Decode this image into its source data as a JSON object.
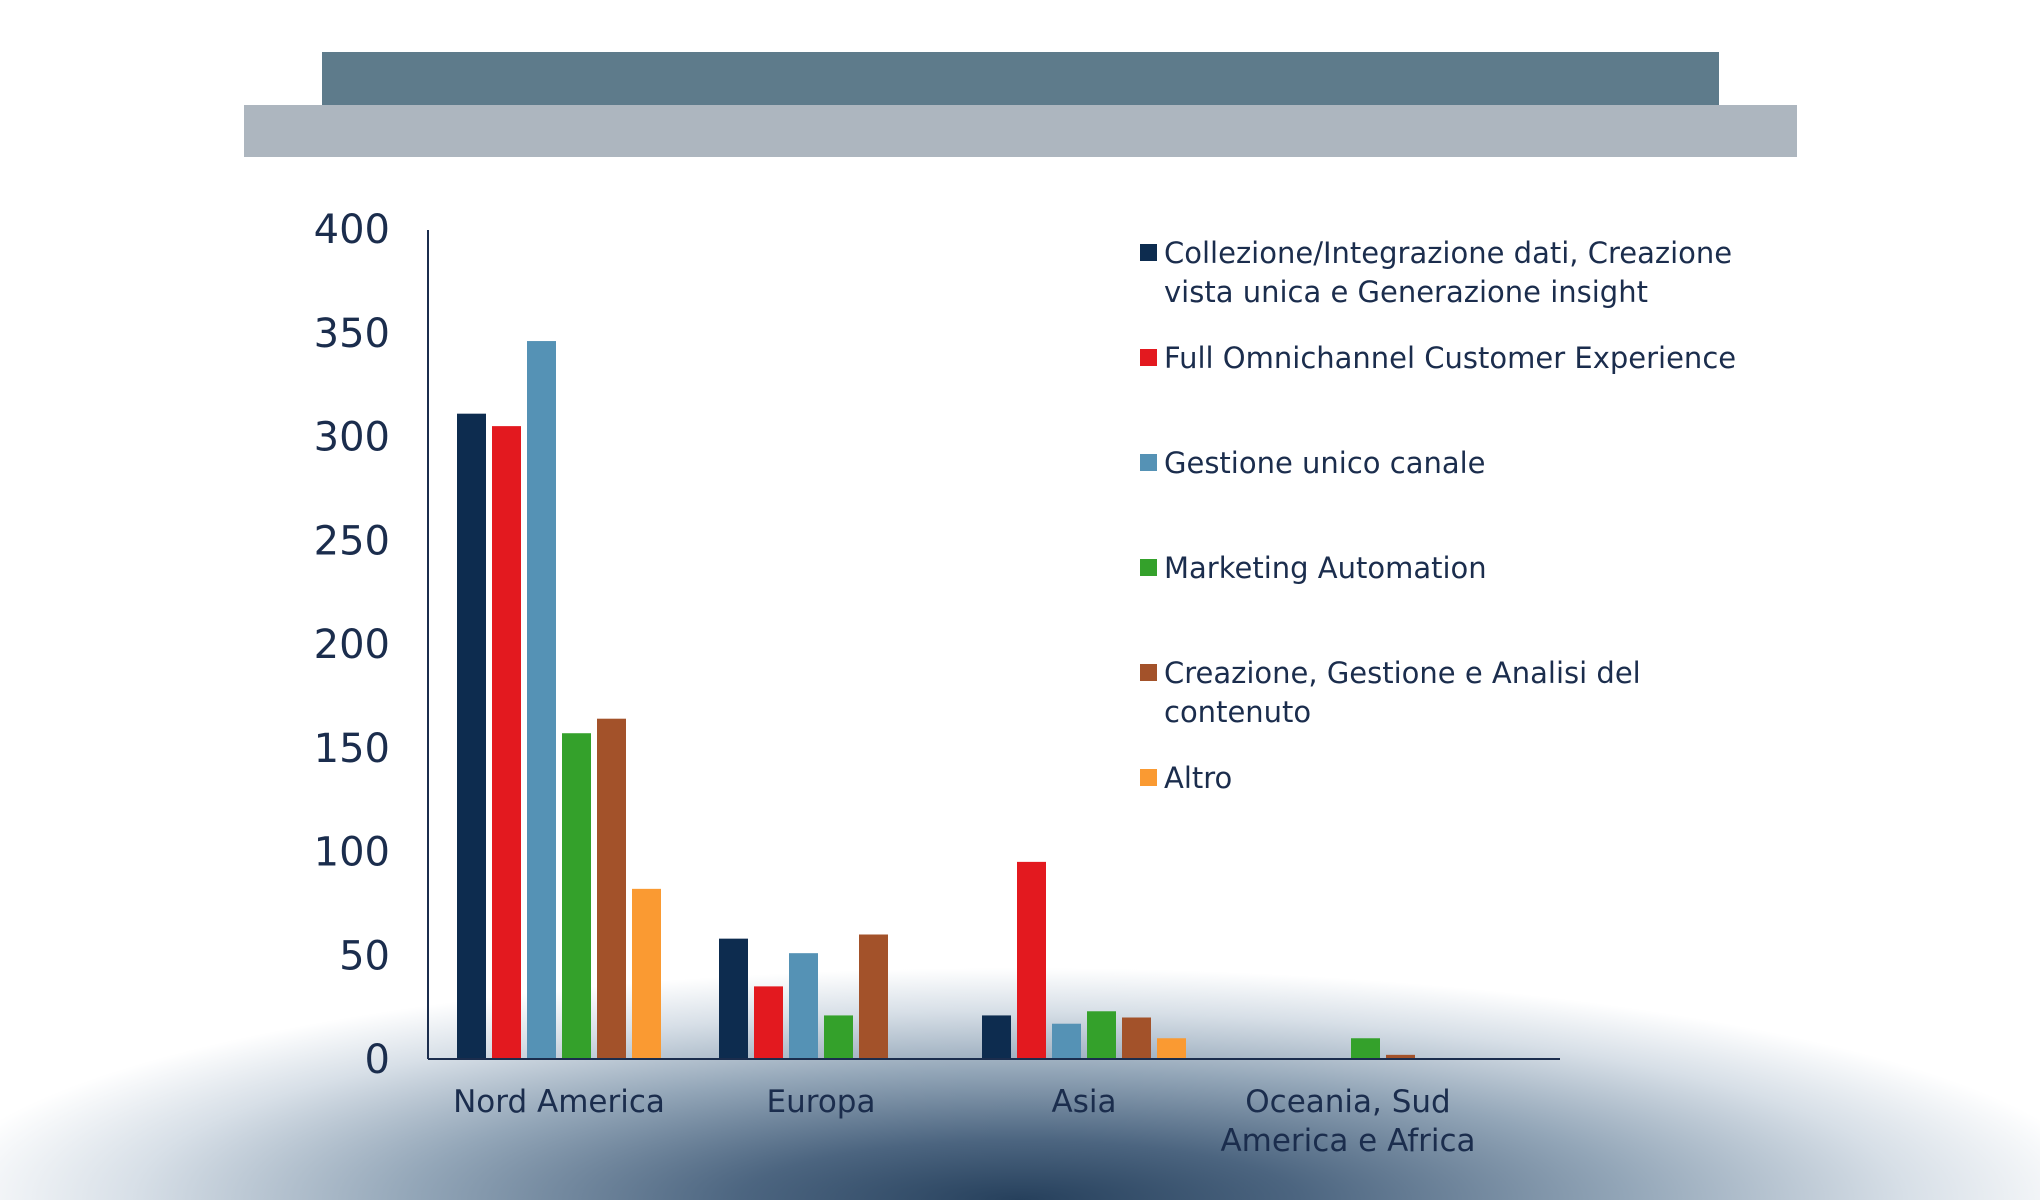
{
  "chart_data": {
    "type": "bar",
    "categories": [
      [
        "Nord America"
      ],
      [
        "Europa"
      ],
      [
        "Asia"
      ],
      [
        "Oceania, Sud",
        "America e Africa"
      ]
    ],
    "series": [
      {
        "name": [
          "Collezione/Integrazione dati, Creazione",
          "vista unica e Generazione insight"
        ],
        "color": "#0d2c4f",
        "values": [
          311,
          58,
          21,
          0
        ]
      },
      {
        "name": [
          "Full Omnichannel Customer Experience"
        ],
        "color": "#e3191f",
        "values": [
          305,
          35,
          95,
          0
        ]
      },
      {
        "name": [
          "Gestione unico canale"
        ],
        "color": "#5592b5",
        "values": [
          346,
          51,
          17,
          0
        ]
      },
      {
        "name": [
          "Marketing Automation"
        ],
        "color": "#34a12b",
        "values": [
          157,
          21,
          23,
          10
        ]
      },
      {
        "name": [
          "Creazione, Gestione e Analisi del",
          "contenuto"
        ],
        "color": "#a3522a",
        "values": [
          164,
          60,
          20,
          2
        ]
      },
      {
        "name": [
          "Altro"
        ],
        "color": "#fa9a32",
        "values": [
          82,
          0,
          10,
          0
        ]
      }
    ],
    "yticks": [
      "0",
      "50",
      "100",
      "150",
      "200",
      "250",
      "300",
      "350",
      "400"
    ],
    "ylim": [
      0,
      400
    ],
    "legend": "right",
    "grid": false
  }
}
